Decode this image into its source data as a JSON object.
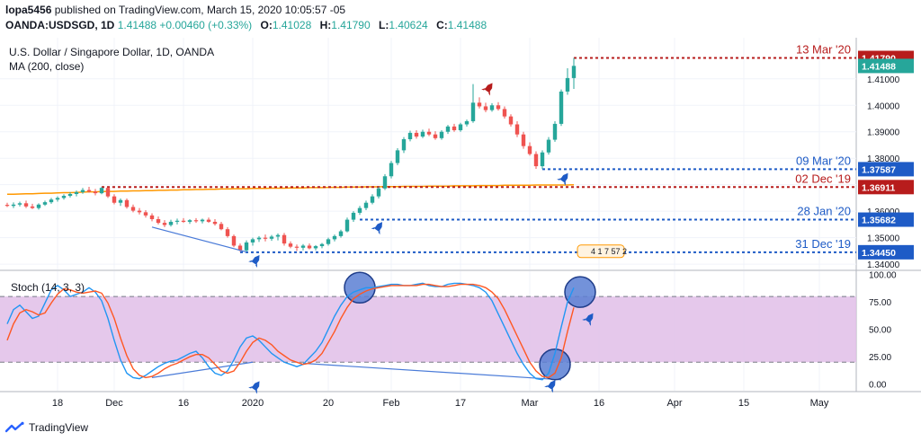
{
  "header": {
    "author": "lopa5456",
    "published": "published on TradingView.com, March 15, 2020 10:05:57 -05",
    "symbol": "OANDA:USDSGD, 1D",
    "last": "1.41488",
    "change": "+0.00460 (+0.33%)",
    "open_label": "O:",
    "open": "1.41028",
    "high_label": "H:",
    "high": "1.41790",
    "low_label": "L:",
    "low": "1.40624",
    "close_label": "C:",
    "close": "1.41488"
  },
  "footer": {
    "brand": "TradingView"
  },
  "colors": {
    "up": "#26a69a",
    "down": "#ef5350",
    "ma": "#ff9800",
    "blue_level": "#1e5bc6",
    "red_level": "#b71c1c",
    "stoch_k": "#2196f3",
    "stoch_d": "#ff5722",
    "stoch_band": "#e1bee7",
    "grid": "#f0f3fa"
  },
  "chart_data": [
    {
      "type": "candlestick",
      "title": "U.S. Dollar / Singapore Dollar, 1D, OANDA",
      "indicator_label": "MA (200, close)",
      "ylim": [
        1.338,
        1.4235
      ],
      "price_ticks": [
        1.41,
        1.4,
        1.39,
        1.38,
        1.37,
        1.36,
        1.35,
        1.34
      ],
      "price_tick_labels": [
        "1.41000",
        "1.40000",
        "1.39000",
        "1.38000",
        "1.37000",
        "1.36000",
        "1.35000",
        "1.34000"
      ],
      "x_tick_labels": [
        {
          "label": "18",
          "i": 8
        },
        {
          "label": "Dec",
          "i": 17
        },
        {
          "label": "16",
          "i": 28
        },
        {
          "label": "2020",
          "i": 39
        },
        {
          "label": "20",
          "i": 51
        },
        {
          "label": "Feb",
          "i": 61
        },
        {
          "label": "17",
          "i": 72
        },
        {
          "label": "Mar",
          "i": 83
        },
        {
          "label": "16",
          "i": 94
        },
        {
          "label": "Apr",
          "i": 106
        },
        {
          "label": "15",
          "i": 117
        },
        {
          "label": "May",
          "i": 129
        }
      ],
      "n_slots": 134,
      "candles": [
        [
          1.3624,
          1.3632,
          1.3616,
          1.362
        ],
        [
          1.362,
          1.3633,
          1.3612,
          1.3625
        ],
        [
          1.3625,
          1.3636,
          1.3618,
          1.363
        ],
        [
          1.363,
          1.364,
          1.3612,
          1.3618
        ],
        [
          1.3618,
          1.3628,
          1.3608,
          1.3612
        ],
        [
          1.3612,
          1.363,
          1.3606,
          1.3625
        ],
        [
          1.3625,
          1.364,
          1.362,
          1.3634
        ],
        [
          1.3634,
          1.365,
          1.3628,
          1.3644
        ],
        [
          1.3644,
          1.3656,
          1.3636,
          1.365
        ],
        [
          1.365,
          1.3664,
          1.3644,
          1.3658
        ],
        [
          1.3658,
          1.3672,
          1.3652,
          1.3665
        ],
        [
          1.3665,
          1.3678,
          1.3656,
          1.3672
        ],
        [
          1.3672,
          1.3688,
          1.3666,
          1.368
        ],
        [
          1.368,
          1.3692,
          1.367,
          1.3674
        ],
        [
          1.3674,
          1.3684,
          1.366,
          1.3668
        ],
        [
          1.3668,
          1.3691,
          1.3664,
          1.3688
        ],
        [
          1.3688,
          1.3691,
          1.365,
          1.3656
        ],
        [
          1.3656,
          1.3664,
          1.3626,
          1.3632
        ],
        [
          1.3632,
          1.3648,
          1.362,
          1.3642
        ],
        [
          1.3642,
          1.3648,
          1.361,
          1.3616
        ],
        [
          1.3616,
          1.3625,
          1.3596,
          1.3602
        ],
        [
          1.3602,
          1.3612,
          1.3588,
          1.3596
        ],
        [
          1.3596,
          1.3604,
          1.3576,
          1.3584
        ],
        [
          1.3584,
          1.3592,
          1.3562,
          1.357
        ],
        [
          1.357,
          1.358,
          1.355,
          1.3556
        ],
        [
          1.3556,
          1.3566,
          1.354,
          1.3548
        ],
        [
          1.3548,
          1.3568,
          1.3542,
          1.356
        ],
        [
          1.356,
          1.3572,
          1.355,
          1.3564
        ],
        [
          1.3564,
          1.3574,
          1.3556,
          1.356
        ],
        [
          1.356,
          1.357,
          1.3552,
          1.3566
        ],
        [
          1.3566,
          1.3574,
          1.3556,
          1.3562
        ],
        [
          1.3562,
          1.3572,
          1.3554,
          1.3568
        ],
        [
          1.3568,
          1.3576,
          1.3556,
          1.356
        ],
        [
          1.356,
          1.357,
          1.3546,
          1.3552
        ],
        [
          1.3552,
          1.356,
          1.3528,
          1.3532
        ],
        [
          1.3532,
          1.354,
          1.35,
          1.3506
        ],
        [
          1.3506,
          1.3512,
          1.3464,
          1.347
        ],
        [
          1.347,
          1.3478,
          1.3447,
          1.3452
        ],
        [
          1.3452,
          1.349,
          1.3446,
          1.3482
        ],
        [
          1.3482,
          1.35,
          1.347,
          1.3494
        ],
        [
          1.3494,
          1.3506,
          1.3484,
          1.35
        ],
        [
          1.35,
          1.3512,
          1.3486,
          1.3496
        ],
        [
          1.3496,
          1.351,
          1.3488,
          1.3504
        ],
        [
          1.3504,
          1.3516,
          1.349,
          1.351
        ],
        [
          1.351,
          1.3518,
          1.347,
          1.3478
        ],
        [
          1.3478,
          1.3486,
          1.346,
          1.3466
        ],
        [
          1.3466,
          1.3474,
          1.345,
          1.3462
        ],
        [
          1.3462,
          1.3476,
          1.3452,
          1.347
        ],
        [
          1.347,
          1.3478,
          1.3456,
          1.346
        ],
        [
          1.346,
          1.3472,
          1.3452,
          1.3468
        ],
        [
          1.3468,
          1.348,
          1.346,
          1.3476
        ],
        [
          1.3476,
          1.35,
          1.347,
          1.3494
        ],
        [
          1.3494,
          1.3512,
          1.3486,
          1.3506
        ],
        [
          1.3506,
          1.353,
          1.35,
          1.3524
        ],
        [
          1.3524,
          1.3576,
          1.352,
          1.3568
        ],
        [
          1.3568,
          1.36,
          1.356,
          1.3594
        ],
        [
          1.3594,
          1.362,
          1.3586,
          1.3612
        ],
        [
          1.3612,
          1.364,
          1.3604,
          1.3632
        ],
        [
          1.3632,
          1.3664,
          1.3626,
          1.3656
        ],
        [
          1.3656,
          1.3692,
          1.3648,
          1.3686
        ],
        [
          1.3686,
          1.374,
          1.368,
          1.3732
        ],
        [
          1.3732,
          1.379,
          1.3724,
          1.3782
        ],
        [
          1.3782,
          1.3838,
          1.3774,
          1.383
        ],
        [
          1.383,
          1.388,
          1.382,
          1.3872
        ],
        [
          1.3872,
          1.3904,
          1.3864,
          1.3896
        ],
        [
          1.3896,
          1.3906,
          1.3874,
          1.3882
        ],
        [
          1.3882,
          1.3908,
          1.3876,
          1.39
        ],
        [
          1.39,
          1.3912,
          1.3884,
          1.389
        ],
        [
          1.389,
          1.3902,
          1.387,
          1.3876
        ],
        [
          1.3876,
          1.3906,
          1.387,
          1.39
        ],
        [
          1.39,
          1.3926,
          1.3892,
          1.392
        ],
        [
          1.392,
          1.393,
          1.39,
          1.3906
        ],
        [
          1.3906,
          1.3934,
          1.39,
          1.3928
        ],
        [
          1.3928,
          1.3946,
          1.392,
          1.394
        ],
        [
          1.394,
          1.408,
          1.3934,
          1.401
        ],
        [
          1.401,
          1.403,
          1.3988,
          1.3996
        ],
        [
          1.3996,
          1.401,
          1.3974,
          1.3982
        ],
        [
          1.3982,
          1.4008,
          1.3976,
          1.4
        ],
        [
          1.4,
          1.4012,
          1.398,
          1.3986
        ],
        [
          1.3986,
          1.3996,
          1.395,
          1.3958
        ],
        [
          1.3958,
          1.3966,
          1.392,
          1.3928
        ],
        [
          1.3928,
          1.394,
          1.388,
          1.389
        ],
        [
          1.389,
          1.39,
          1.3836,
          1.3846
        ],
        [
          1.3846,
          1.386,
          1.381,
          1.3816
        ],
        [
          1.3816,
          1.3826,
          1.376,
          1.377
        ],
        [
          1.377,
          1.383,
          1.3759,
          1.3822
        ],
        [
          1.3822,
          1.388,
          1.3814,
          1.387
        ],
        [
          1.387,
          1.394,
          1.3862,
          1.393
        ],
        [
          1.393,
          1.406,
          1.3922,
          1.4052
        ],
        [
          1.4052,
          1.414,
          1.404,
          1.4103
        ],
        [
          1.4103,
          1.4179,
          1.4062,
          1.4149
        ]
      ],
      "ma200": [
        1.3664,
        1.3664,
        1.3665,
        1.3666,
        1.3666,
        1.3667,
        1.3668,
        1.3668,
        1.3669,
        1.367,
        1.367,
        1.3671,
        1.3672,
        1.3673,
        1.3673,
        1.3674,
        1.3675,
        1.3675,
        1.3676,
        1.3676,
        1.3677,
        1.3677,
        1.3678,
        1.3678,
        1.3679,
        1.3679,
        1.368,
        1.368,
        1.3681,
        1.3681,
        1.3682,
        1.3682,
        1.3683,
        1.3683,
        1.3684,
        1.3684,
        1.3685,
        1.3685,
        1.3685,
        1.3686,
        1.3686,
        1.3686,
        1.3687,
        1.3687,
        1.3687,
        1.3688,
        1.3688,
        1.3688,
        1.3689,
        1.3689,
        1.3689,
        1.369,
        1.369,
        1.369,
        1.3691,
        1.3691,
        1.3691,
        1.3692,
        1.3692,
        1.3692,
        1.3693,
        1.3693,
        1.3693,
        1.3694,
        1.3694,
        1.3694,
        1.3694,
        1.3695,
        1.3695,
        1.3695,
        1.3695,
        1.3696,
        1.3696,
        1.3696,
        1.3696,
        1.3697,
        1.3697,
        1.3697,
        1.3697,
        1.3698,
        1.3698,
        1.3698,
        1.3698,
        1.3698,
        1.3699,
        1.3699,
        1.3699,
        1.3699,
        1.3699,
        1.3699,
        1.37
      ],
      "levels": [
        {
          "value": 1.4179,
          "price": "1.41790",
          "date": "13 Mar '20",
          "color": "red",
          "start_i": 90
        },
        {
          "value": 1.37587,
          "price": "1.37587",
          "date": "09 Mar '20",
          "color": "blue",
          "start_i": 85
        },
        {
          "value": 1.36911,
          "price": "1.36911",
          "date": "02 Dec '19",
          "color": "red",
          "start_i": 15
        },
        {
          "value": 1.35682,
          "price": "1.35682",
          "date": "28 Jan '20",
          "color": "blue",
          "start_i": 56
        },
        {
          "value": 1.3445,
          "price": "1.34450",
          "date": "31 Dec '19",
          "color": "blue",
          "start_i": 37
        }
      ],
      "last_price_tag": "1.41488",
      "event_marker_text": "4 1 7 57 2"
    },
    {
      "type": "line",
      "title": "Stoch (14, 3, 3)",
      "ylim": [
        -6,
        103
      ],
      "y_ticks": [
        100,
        75,
        50,
        25,
        0
      ],
      "y_tick_labels": [
        "100.00",
        "75.00",
        "50.00",
        "25.00",
        "0.00"
      ],
      "band": [
        20,
        80
      ],
      "series": [
        {
          "name": "%K",
          "values": [
            55,
            68,
            72,
            66,
            60,
            62,
            74,
            86,
            90,
            86,
            80,
            82,
            84,
            88,
            84,
            76,
            60,
            40,
            22,
            10,
            6,
            5,
            8,
            12,
            16,
            19,
            21,
            22,
            25,
            28,
            30,
            24,
            16,
            10,
            8,
            12,
            22,
            34,
            42,
            44,
            40,
            34,
            28,
            24,
            20,
            18,
            16,
            18,
            24,
            30,
            38,
            50,
            62,
            72,
            80,
            84,
            86,
            88,
            88,
            89,
            90,
            91,
            91,
            90,
            90,
            91,
            92,
            90,
            89,
            89,
            91,
            92,
            92,
            91,
            90,
            88,
            84,
            76,
            64,
            52,
            40,
            28,
            18,
            10,
            5,
            4,
            10,
            28,
            52,
            75,
            88
          ]
        },
        {
          "name": "%D",
          "values": [
            40,
            55,
            65,
            68,
            66,
            63,
            65,
            74,
            82,
            87,
            86,
            84,
            83,
            84,
            85,
            83,
            74,
            60,
            42,
            26,
            14,
            8,
            6,
            7,
            10,
            14,
            17,
            19,
            22,
            25,
            27,
            27,
            24,
            18,
            12,
            10,
            12,
            20,
            30,
            38,
            42,
            40,
            36,
            30,
            26,
            22,
            20,
            18,
            19,
            22,
            28,
            38,
            48,
            60,
            70,
            78,
            82,
            85,
            87,
            88,
            89,
            90,
            90,
            90,
            90,
            90,
            91,
            91,
            90,
            89,
            89,
            90,
            91,
            91,
            91,
            90,
            88,
            84,
            78,
            68,
            56,
            44,
            32,
            20,
            12,
            7,
            6,
            10,
            24,
            48,
            70
          ]
        }
      ]
    }
  ]
}
